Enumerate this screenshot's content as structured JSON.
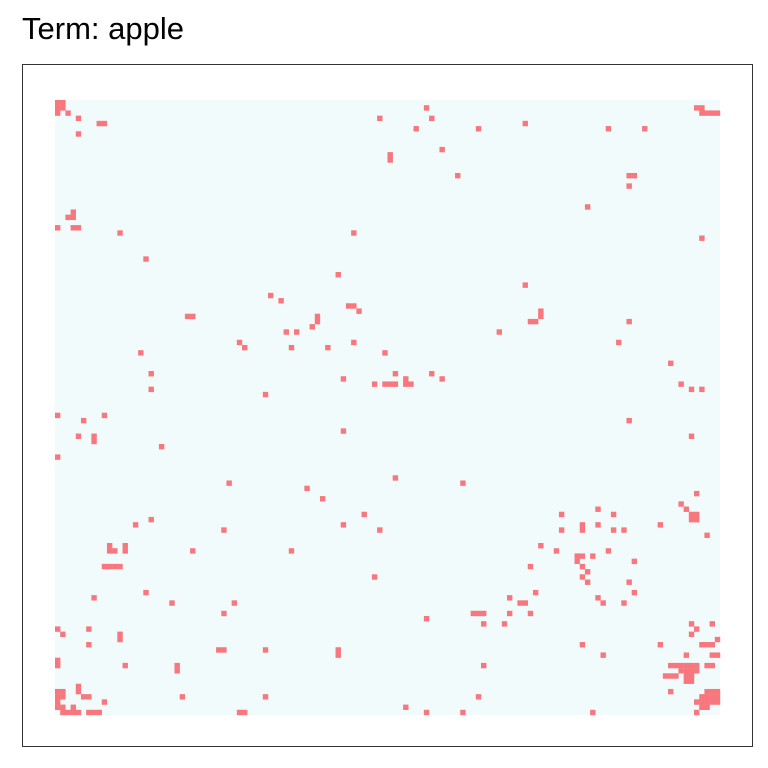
{
  "chart_data": {
    "type": "raster",
    "title": "Term: apple",
    "color": "#f8767d",
    "background": "#f1fbfb",
    "xlim": [
      0,
      128
    ],
    "ylim": [
      0,
      118
    ],
    "cells": [
      [
        0,
        1
      ],
      [
        1,
        1
      ],
      [
        2,
        2
      ],
      [
        0,
        2
      ],
      [
        0,
        0
      ],
      [
        1,
        0
      ],
      [
        4,
        3
      ],
      [
        8,
        4
      ],
      [
        9,
        4
      ],
      [
        4,
        6
      ],
      [
        71,
        1
      ],
      [
        62,
        3
      ],
      [
        72,
        3
      ],
      [
        69,
        5
      ],
      [
        81,
        5
      ],
      [
        90,
        4
      ],
      [
        106,
        5
      ],
      [
        113,
        5
      ],
      [
        123,
        1
      ],
      [
        124,
        1
      ],
      [
        125,
        2
      ],
      [
        126,
        2
      ],
      [
        127,
        2
      ],
      [
        124,
        2
      ],
      [
        64,
        10
      ],
      [
        64,
        11
      ],
      [
        74,
        9
      ],
      [
        77,
        14
      ],
      [
        110,
        14
      ],
      [
        111,
        14
      ],
      [
        110,
        16
      ],
      [
        102,
        20
      ],
      [
        3,
        21
      ],
      [
        2,
        22
      ],
      [
        3,
        22
      ],
      [
        0,
        24
      ],
      [
        3,
        24
      ],
      [
        4,
        24
      ],
      [
        12,
        25
      ],
      [
        57,
        25
      ],
      [
        124,
        26
      ],
      [
        17,
        30
      ],
      [
        54,
        33
      ],
      [
        90,
        35
      ],
      [
        41,
        37
      ],
      [
        43,
        38
      ],
      [
        56,
        39
      ],
      [
        57,
        39
      ],
      [
        58,
        40
      ],
      [
        25,
        41
      ],
      [
        26,
        41
      ],
      [
        50,
        41
      ],
      [
        50,
        42
      ],
      [
        49,
        43
      ],
      [
        93,
        40
      ],
      [
        92,
        42
      ],
      [
        91,
        42
      ],
      [
        93,
        41
      ],
      [
        44,
        44
      ],
      [
        46,
        44
      ],
      [
        85,
        44
      ],
      [
        110,
        42
      ],
      [
        35,
        46
      ],
      [
        36,
        47
      ],
      [
        45,
        47
      ],
      [
        57,
        46
      ],
      [
        52,
        47
      ],
      [
        108,
        46
      ],
      [
        16,
        48
      ],
      [
        63,
        48
      ],
      [
        118,
        50
      ],
      [
        18,
        52
      ],
      [
        65,
        52
      ],
      [
        72,
        52
      ],
      [
        55,
        53
      ],
      [
        61,
        54
      ],
      [
        63,
        54
      ],
      [
        64,
        54
      ],
      [
        65,
        54
      ],
      [
        67,
        54
      ],
      [
        68,
        54
      ],
      [
        67,
        53
      ],
      [
        74,
        53
      ],
      [
        18,
        55
      ],
      [
        120,
        54
      ],
      [
        122,
        55
      ],
      [
        124,
        55
      ],
      [
        40,
        56
      ],
      [
        9,
        60
      ],
      [
        0,
        60
      ],
      [
        5,
        61
      ],
      [
        110,
        61
      ],
      [
        4,
        64
      ],
      [
        7,
        64
      ],
      [
        7,
        65
      ],
      [
        55,
        63
      ],
      [
        122,
        64
      ],
      [
        20,
        66
      ],
      [
        0,
        68
      ],
      [
        65,
        72
      ],
      [
        33,
        73
      ],
      [
        78,
        73
      ],
      [
        48,
        74
      ],
      [
        123,
        75
      ],
      [
        51,
        76
      ],
      [
        120,
        77
      ],
      [
        121,
        78
      ],
      [
        122,
        79
      ],
      [
        123,
        79
      ],
      [
        122,
        80
      ],
      [
        123,
        80
      ],
      [
        104,
        78
      ],
      [
        107,
        79
      ],
      [
        97,
        79
      ],
      [
        59,
        79
      ],
      [
        18,
        80
      ],
      [
        15,
        81
      ],
      [
        55,
        81
      ],
      [
        62,
        82
      ],
      [
        97,
        82
      ],
      [
        101,
        81
      ],
      [
        101,
        82
      ],
      [
        104,
        81
      ],
      [
        107,
        82
      ],
      [
        109,
        82
      ],
      [
        116,
        81
      ],
      [
        32,
        82
      ],
      [
        125,
        83
      ],
      [
        10,
        85
      ],
      [
        10,
        86
      ],
      [
        11,
        86
      ],
      [
        13,
        86
      ],
      [
        13,
        85
      ],
      [
        26,
        86
      ],
      [
        45,
        86
      ],
      [
        93,
        85
      ],
      [
        96,
        86
      ],
      [
        100,
        87
      ],
      [
        101,
        87
      ],
      [
        100,
        88
      ],
      [
        101,
        89
      ],
      [
        102,
        90
      ],
      [
        103,
        87
      ],
      [
        106,
        86
      ],
      [
        111,
        88
      ],
      [
        9,
        89
      ],
      [
        10,
        89
      ],
      [
        11,
        89
      ],
      [
        12,
        89
      ],
      [
        91,
        89
      ],
      [
        61,
        91
      ],
      [
        101,
        91
      ],
      [
        102,
        92
      ],
      [
        110,
        92
      ],
      [
        17,
        94
      ],
      [
        7,
        95
      ],
      [
        87,
        95
      ],
      [
        92,
        94
      ],
      [
        104,
        95
      ],
      [
        105,
        96
      ],
      [
        111,
        94
      ],
      [
        22,
        96
      ],
      [
        34,
        96
      ],
      [
        89,
        96
      ],
      [
        90,
        96
      ],
      [
        109,
        96
      ],
      [
        32,
        98
      ],
      [
        80,
        98
      ],
      [
        81,
        98
      ],
      [
        82,
        98
      ],
      [
        87,
        98
      ],
      [
        71,
        99
      ],
      [
        82,
        100
      ],
      [
        86,
        100
      ],
      [
        91,
        98
      ],
      [
        0,
        101
      ],
      [
        1,
        102
      ],
      [
        6,
        101
      ],
      [
        122,
        100
      ],
      [
        123,
        101
      ],
      [
        122,
        102
      ],
      [
        126,
        100
      ],
      [
        12,
        102
      ],
      [
        12,
        103
      ],
      [
        6,
        104
      ],
      [
        101,
        104
      ],
      [
        116,
        104
      ],
      [
        124,
        104
      ],
      [
        125,
        104
      ],
      [
        126,
        104
      ],
      [
        127,
        103
      ],
      [
        31,
        105
      ],
      [
        32,
        105
      ],
      [
        40,
        105
      ],
      [
        54,
        105
      ],
      [
        54,
        106
      ],
      [
        105,
        106
      ],
      [
        121,
        106
      ],
      [
        126,
        106
      ],
      [
        127,
        106
      ],
      [
        0,
        107
      ],
      [
        0,
        108
      ],
      [
        13,
        108
      ],
      [
        23,
        108
      ],
      [
        23,
        109
      ],
      [
        82,
        108
      ],
      [
        118,
        108
      ],
      [
        119,
        108
      ],
      [
        120,
        108
      ],
      [
        121,
        108
      ],
      [
        122,
        108
      ],
      [
        123,
        108
      ],
      [
        120,
        109
      ],
      [
        119,
        110
      ],
      [
        118,
        110
      ],
      [
        117,
        110
      ],
      [
        121,
        110
      ],
      [
        122,
        110
      ],
      [
        121,
        111
      ],
      [
        125,
        108
      ],
      [
        126,
        108
      ],
      [
        118,
        113
      ],
      [
        122,
        111
      ],
      [
        121,
        109
      ],
      [
        123,
        109
      ],
      [
        122,
        109
      ],
      [
        0,
        113
      ],
      [
        1,
        113
      ],
      [
        0,
        114
      ],
      [
        0,
        115
      ],
      [
        0,
        116
      ],
      [
        1,
        116
      ],
      [
        1,
        117
      ],
      [
        2,
        117
      ],
      [
        1,
        114
      ],
      [
        4,
        112
      ],
      [
        4,
        113
      ],
      [
        5,
        114
      ],
      [
        6,
        114
      ],
      [
        9,
        115
      ],
      [
        24,
        114
      ],
      [
        40,
        114
      ],
      [
        81,
        114
      ],
      [
        67,
        116
      ],
      [
        125,
        113
      ],
      [
        126,
        113
      ],
      [
        127,
        113
      ],
      [
        124,
        114
      ],
      [
        125,
        114
      ],
      [
        126,
        114
      ],
      [
        127,
        114
      ],
      [
        123,
        115
      ],
      [
        124,
        115
      ],
      [
        125,
        115
      ],
      [
        126,
        115
      ],
      [
        127,
        115
      ],
      [
        124,
        116
      ],
      [
        125,
        116
      ],
      [
        3,
        116
      ],
      [
        4,
        117
      ],
      [
        3,
        117
      ],
      [
        6,
        117
      ],
      [
        7,
        117
      ],
      [
        8,
        117
      ],
      [
        35,
        117
      ],
      [
        36,
        117
      ],
      [
        71,
        117
      ],
      [
        78,
        117
      ],
      [
        103,
        117
      ],
      [
        123,
        117
      ]
    ]
  }
}
